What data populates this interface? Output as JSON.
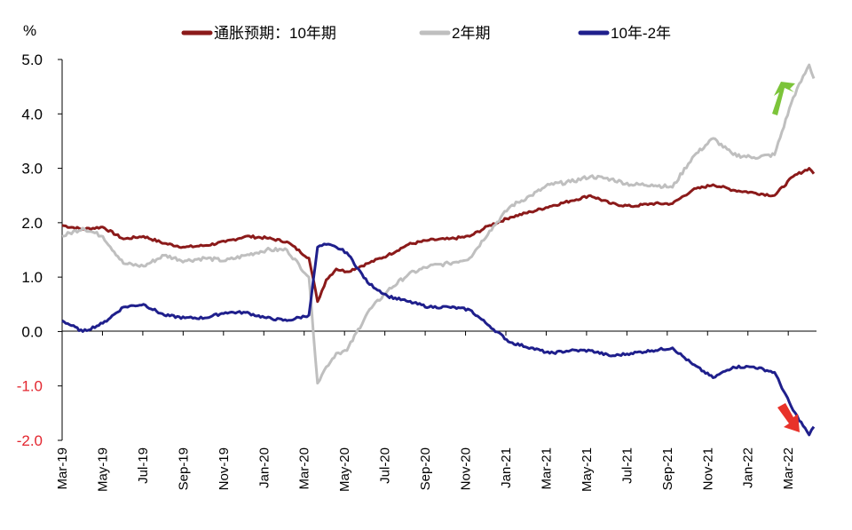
{
  "chart_data": {
    "type": "line",
    "title": "",
    "ylabel": "%",
    "xlabel": "",
    "ylim": [
      -2.0,
      5.0
    ],
    "yticks": [
      "5.0",
      "4.0",
      "3.0",
      "2.0",
      "1.0",
      "0.0",
      "-1.0",
      "-2.0"
    ],
    "xticks": [
      "Mar-19",
      "May-19",
      "Jul-19",
      "Sep-19",
      "Nov-19",
      "Jan-20",
      "Mar-20",
      "May-20",
      "Jul-20",
      "Sep-20",
      "Nov-20",
      "Jan-21",
      "Mar-21",
      "May-21",
      "Jul-21",
      "Sep-21",
      "Nov-21",
      "Jan-22",
      "Mar-22"
    ],
    "legend_position": "top",
    "grid": false,
    "series": [
      {
        "name": "通胀预期：10年期",
        "color": "#8b1a1a",
        "points": [
          [
            "2019-03",
            1.95
          ],
          [
            "2019-04",
            1.88
          ],
          [
            "2019-05",
            1.92
          ],
          [
            "2019-06",
            1.7
          ],
          [
            "2019-07",
            1.75
          ],
          [
            "2019-08",
            1.62
          ],
          [
            "2019-09",
            1.55
          ],
          [
            "2019-10",
            1.58
          ],
          [
            "2019-11",
            1.65
          ],
          [
            "2019-12",
            1.75
          ],
          [
            "2020-01",
            1.72
          ],
          [
            "2020-02",
            1.65
          ],
          [
            "2020-03-05",
            1.35
          ],
          [
            "2020-03-18",
            0.55
          ],
          [
            "2020-03-31",
            0.95
          ],
          [
            "2020-04-15",
            1.15
          ],
          [
            "2020-05",
            1.1
          ],
          [
            "2020-06",
            1.25
          ],
          [
            "2020-07",
            1.4
          ],
          [
            "2020-08",
            1.6
          ],
          [
            "2020-09",
            1.68
          ],
          [
            "2020-10",
            1.7
          ],
          [
            "2020-11",
            1.75
          ],
          [
            "2020-12",
            1.95
          ],
          [
            "2021-01",
            2.1
          ],
          [
            "2021-02",
            2.2
          ],
          [
            "2021-03",
            2.3
          ],
          [
            "2021-04",
            2.4
          ],
          [
            "2021-05",
            2.5
          ],
          [
            "2021-06",
            2.35
          ],
          [
            "2021-07",
            2.3
          ],
          [
            "2021-08",
            2.35
          ],
          [
            "2021-09",
            2.35
          ],
          [
            "2021-10",
            2.6
          ],
          [
            "2021-11",
            2.7
          ],
          [
            "2021-12",
            2.6
          ],
          [
            "2022-01",
            2.55
          ],
          [
            "2022-02",
            2.5
          ],
          [
            "2022-03",
            2.85
          ],
          [
            "2022-03-25",
            3.0
          ],
          [
            "2022-04",
            2.9
          ]
        ]
      },
      {
        "name": "2年期",
        "color": "#bfbfbf",
        "points": [
          [
            "2019-03",
            1.75
          ],
          [
            "2019-04",
            1.9
          ],
          [
            "2019-05",
            1.75
          ],
          [
            "2019-06",
            1.25
          ],
          [
            "2019-07",
            1.2
          ],
          [
            "2019-08",
            1.4
          ],
          [
            "2019-09",
            1.3
          ],
          [
            "2019-10",
            1.35
          ],
          [
            "2019-11",
            1.3
          ],
          [
            "2019-12",
            1.4
          ],
          [
            "2020-01",
            1.5
          ],
          [
            "2020-02",
            1.5
          ],
          [
            "2020-03-05",
            1.0
          ],
          [
            "2020-03-18",
            -0.95
          ],
          [
            "2020-03-31",
            -0.65
          ],
          [
            "2020-04-15",
            -0.4
          ],
          [
            "2020-05",
            -0.35
          ],
          [
            "2020-06",
            0.35
          ],
          [
            "2020-07",
            0.75
          ],
          [
            "2020-08",
            1.05
          ],
          [
            "2020-09",
            1.2
          ],
          [
            "2020-10",
            1.25
          ],
          [
            "2020-11",
            1.35
          ],
          [
            "2020-12",
            1.85
          ],
          [
            "2021-01",
            2.3
          ],
          [
            "2021-02",
            2.5
          ],
          [
            "2021-03",
            2.7
          ],
          [
            "2021-04",
            2.75
          ],
          [
            "2021-05",
            2.85
          ],
          [
            "2021-06",
            2.8
          ],
          [
            "2021-07",
            2.7
          ],
          [
            "2021-08",
            2.7
          ],
          [
            "2021-09",
            2.65
          ],
          [
            "2021-10",
            3.2
          ],
          [
            "2021-11",
            3.55
          ],
          [
            "2021-12",
            3.25
          ],
          [
            "2022-01",
            3.2
          ],
          [
            "2022-02",
            3.25
          ],
          [
            "2022-03",
            4.3
          ],
          [
            "2022-03-25",
            4.9
          ],
          [
            "2022-04",
            4.65
          ]
        ]
      },
      {
        "name": "10年-2年",
        "color": "#1f1f8c",
        "points": [
          [
            "2019-03",
            0.2
          ],
          [
            "2019-04",
            0.0
          ],
          [
            "2019-05",
            0.15
          ],
          [
            "2019-06",
            0.45
          ],
          [
            "2019-07",
            0.5
          ],
          [
            "2019-08",
            0.3
          ],
          [
            "2019-09",
            0.25
          ],
          [
            "2019-10",
            0.25
          ],
          [
            "2019-11",
            0.35
          ],
          [
            "2019-12",
            0.35
          ],
          [
            "2020-01",
            0.25
          ],
          [
            "2020-02",
            0.2
          ],
          [
            "2020-03-05",
            0.3
          ],
          [
            "2020-03-18",
            1.55
          ],
          [
            "2020-03-31",
            1.6
          ],
          [
            "2020-04-15",
            1.55
          ],
          [
            "2020-05",
            1.45
          ],
          [
            "2020-06",
            0.9
          ],
          [
            "2020-07",
            0.65
          ],
          [
            "2020-08",
            0.55
          ],
          [
            "2020-09",
            0.45
          ],
          [
            "2020-10",
            0.45
          ],
          [
            "2020-11",
            0.4
          ],
          [
            "2020-12",
            0.1
          ],
          [
            "2021-01",
            -0.2
          ],
          [
            "2021-02",
            -0.3
          ],
          [
            "2021-03",
            -0.4
          ],
          [
            "2021-04",
            -0.35
          ],
          [
            "2021-05",
            -0.35
          ],
          [
            "2021-06",
            -0.45
          ],
          [
            "2021-07",
            -0.4
          ],
          [
            "2021-08",
            -0.35
          ],
          [
            "2021-09",
            -0.3
          ],
          [
            "2021-10",
            -0.6
          ],
          [
            "2021-11",
            -0.85
          ],
          [
            "2021-12",
            -0.65
          ],
          [
            "2022-01",
            -0.65
          ],
          [
            "2022-02",
            -0.75
          ],
          [
            "2022-03",
            -1.45
          ],
          [
            "2022-03-25",
            -1.9
          ],
          [
            "2022-04",
            -1.75
          ]
        ]
      }
    ],
    "annotations": [
      {
        "name": "up-arrow",
        "color": "#7cc43a"
      },
      {
        "name": "down-arrow",
        "color": "#e8322a"
      }
    ]
  }
}
